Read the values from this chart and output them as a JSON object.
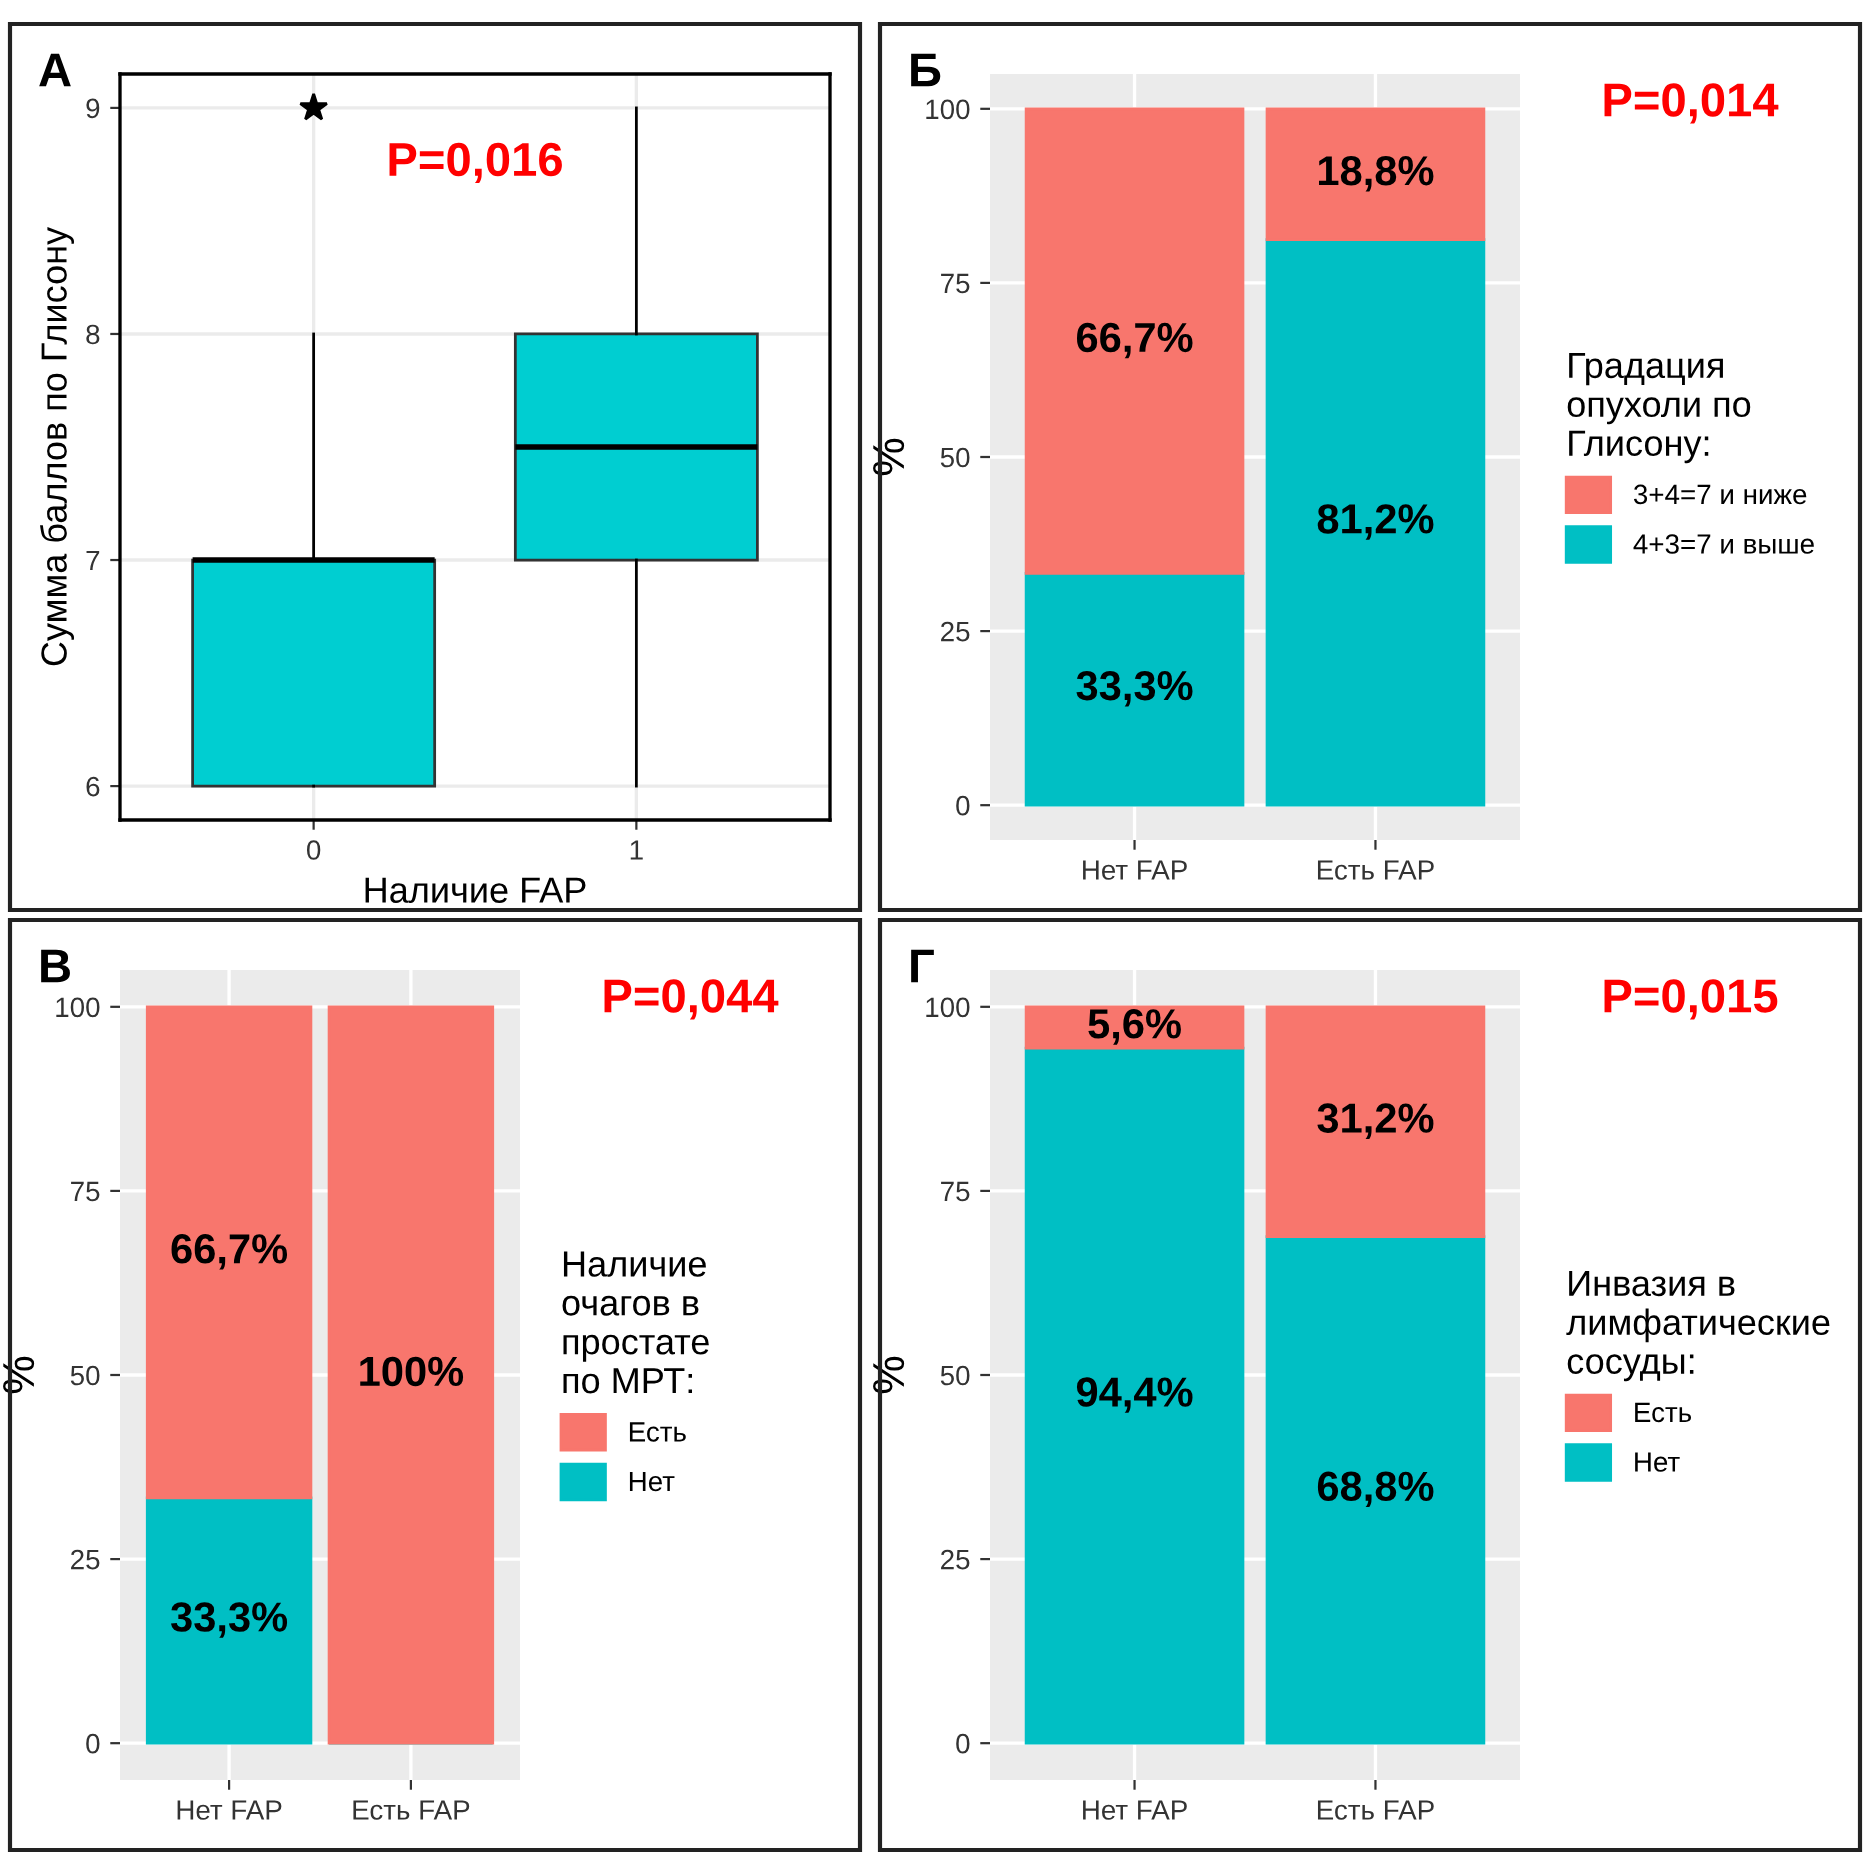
{
  "chart_data": [
    {
      "type": "box",
      "title": "А",
      "xlabel": "Наличие FAP",
      "ylabel": "Сумма баллов по Глисону",
      "categories": [
        "0",
        "1"
      ],
      "colors": [
        "#00ced1",
        "#00ced1"
      ],
      "boxes": [
        {
          "low": 6,
          "q1": 6,
          "median": 7,
          "q3": 7,
          "high": 8,
          "outliers": [
            9
          ]
        },
        {
          "low": 6,
          "q1": 7,
          "median": 7.5,
          "q3": 8,
          "high": 9
        }
      ],
      "ylim": [
        5.85,
        9.15
      ],
      "yticks": [
        6,
        7,
        8,
        9
      ],
      "grid": true,
      "annotations": [
        "P=0,016"
      ]
    },
    {
      "type": "bar",
      "title": "Б",
      "ylabel": "%",
      "categories": [
        "Нет FAP",
        "Есть FAP"
      ],
      "stacked": true,
      "legend": "right",
      "legend_title": "Градация опухоли по Глисону:",
      "series": [
        {
          "name": "4+3=7 и выше",
          "color": "#00bfc4",
          "values": [
            33.3,
            81.2
          ],
          "value_labels": [
            "33,3%",
            "81,2%"
          ]
        },
        {
          "name": "3+4=7 и ниже",
          "color": "#f8766d",
          "values": [
            66.7,
            18.8
          ],
          "value_labels": [
            "66,7%",
            "18,8%"
          ]
        }
      ],
      "ylim": [
        -5,
        105
      ],
      "yticks": [
        0,
        25,
        50,
        75,
        100
      ],
      "grid": true,
      "annotations": [
        "P=0,014"
      ]
    },
    {
      "type": "bar",
      "title": "В",
      "ylabel": "%",
      "categories": [
        "Нет FAP",
        "Есть FAP"
      ],
      "stacked": true,
      "legend": "right",
      "legend_title": "Наличие очагов в простате по МРТ:",
      "series": [
        {
          "name": "Нет",
          "color": "#00bfc4",
          "values": [
            33.3,
            0
          ],
          "value_labels": [
            "33,3%",
            null
          ]
        },
        {
          "name": "Есть",
          "color": "#f8766d",
          "values": [
            66.7,
            100
          ],
          "value_labels": [
            "66,7%",
            "100%"
          ]
        }
      ],
      "ylim": [
        -5,
        105
      ],
      "yticks": [
        0,
        25,
        50,
        75,
        100
      ],
      "grid": true,
      "annotations": [
        "P=0,044"
      ]
    },
    {
      "type": "bar",
      "title": "Г",
      "ylabel": "%",
      "categories": [
        "Нет FAP",
        "Есть FAP"
      ],
      "stacked": true,
      "legend": "right",
      "legend_title": "Инвазия в лимфатические сосуды:",
      "series": [
        {
          "name": "Нет",
          "color": "#00bfc4",
          "values": [
            94.4,
            68.8
          ],
          "value_labels": [
            "94,4%",
            "68,8%"
          ]
        },
        {
          "name": "Есть",
          "color": "#f8766d",
          "values": [
            5.6,
            31.2
          ],
          "value_labels": [
            "5,6%",
            "31,2%"
          ]
        }
      ],
      "ylim": [
        -5,
        105
      ],
      "yticks": [
        0,
        25,
        50,
        75,
        100
      ],
      "grid": true,
      "annotations": [
        "P=0,015"
      ]
    }
  ]
}
